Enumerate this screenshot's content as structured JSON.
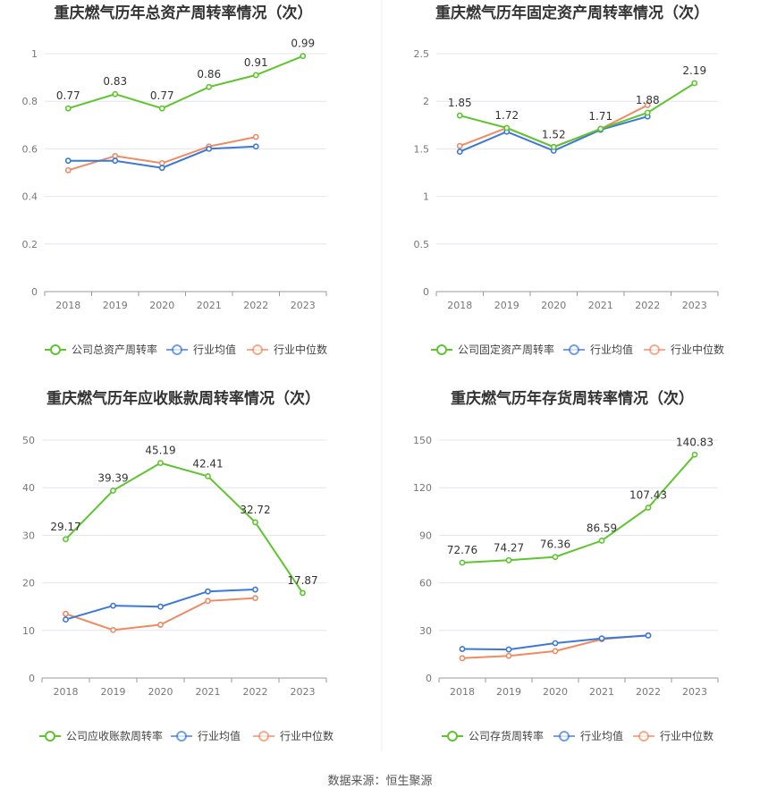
{
  "source": "数据来源：恒生聚源",
  "colors": {
    "company": "#5ec52f",
    "industry_avg": "#3b78d8",
    "industry_median": "#f08a62",
    "grid": "#e4e4ef",
    "axis_text": "#777777",
    "title": "#333333",
    "divider": "#eeeeee"
  },
  "legend_icon": "circle-line-icon",
  "chart_data": [
    {
      "type": "line",
      "title": "重庆燃气历年总资产周转率情况（次）",
      "categories": [
        "2018",
        "2019",
        "2020",
        "2021",
        "2022",
        "2023"
      ],
      "yticks": [
        "0",
        "0.2",
        "0.4",
        "0.6",
        "0.8",
        "1"
      ],
      "ylim": [
        0,
        1.0
      ],
      "grid": true,
      "legend_position": "bottom",
      "series": [
        {
          "name": "公司总资产周转率",
          "role": "company",
          "values": [
            0.77,
            0.83,
            0.77,
            0.86,
            0.91,
            0.99
          ],
          "labels": [
            "0.77",
            "0.83",
            "0.77",
            "0.86",
            "0.91",
            "0.99"
          ]
        },
        {
          "name": "行业均值",
          "role": "industry_avg",
          "values": [
            0.55,
            0.55,
            0.52,
            0.6,
            0.61,
            null
          ]
        },
        {
          "name": "行业中位数",
          "role": "industry_median",
          "values": [
            0.51,
            0.57,
            0.54,
            0.61,
            0.65,
            null
          ]
        }
      ]
    },
    {
      "type": "line",
      "title": "重庆燃气历年固定资产周转率情况（次）",
      "categories": [
        "2018",
        "2019",
        "2020",
        "2021",
        "2022",
        "2023"
      ],
      "yticks": [
        "0",
        "0.5",
        "1",
        "1.5",
        "2",
        "2.5"
      ],
      "ylim": [
        0,
        2.5
      ],
      "grid": true,
      "legend_position": "bottom",
      "series": [
        {
          "name": "公司固定资产周转率",
          "role": "company",
          "values": [
            1.85,
            1.72,
            1.52,
            1.71,
            1.88,
            2.19
          ],
          "labels": [
            "1.85",
            "1.72",
            "1.52",
            "1.71",
            "1.88",
            "2.19"
          ]
        },
        {
          "name": "行业均值",
          "role": "industry_avg",
          "values": [
            1.47,
            1.68,
            1.48,
            1.7,
            1.84,
            null
          ]
        },
        {
          "name": "行业中位数",
          "role": "industry_median",
          "values": [
            1.53,
            1.72,
            1.52,
            1.71,
            1.96,
            null
          ]
        }
      ]
    },
    {
      "type": "line",
      "title": "重庆燃气历年应收账款周转率情况（次）",
      "categories": [
        "2018",
        "2019",
        "2020",
        "2021",
        "2022",
        "2023"
      ],
      "yticks": [
        "0",
        "10",
        "20",
        "30",
        "40",
        "50"
      ],
      "ylim": [
        0,
        50
      ],
      "grid": true,
      "legend_position": "bottom",
      "series": [
        {
          "name": "公司应收账款周转率",
          "role": "company",
          "values": [
            29.17,
            39.39,
            45.19,
            42.41,
            32.72,
            17.87
          ],
          "labels": [
            "29.17",
            "39.39",
            "45.19",
            "42.41",
            "32.72",
            "17.87"
          ]
        },
        {
          "name": "行业均值",
          "role": "industry_avg",
          "values": [
            12.3,
            15.2,
            15.0,
            18.2,
            18.6,
            null
          ]
        },
        {
          "name": "行业中位数",
          "role": "industry_median",
          "values": [
            13.5,
            10.1,
            11.2,
            16.2,
            16.8,
            null
          ]
        }
      ]
    },
    {
      "type": "line",
      "title": "重庆燃气历年存货周转率情况（次）",
      "categories": [
        "2018",
        "2019",
        "2020",
        "2021",
        "2022",
        "2023"
      ],
      "yticks": [
        "0",
        "30",
        "60",
        "90",
        "120",
        "150"
      ],
      "ylim": [
        0,
        150
      ],
      "grid": true,
      "legend_position": "bottom",
      "series": [
        {
          "name": "公司存货周转率",
          "role": "company",
          "values": [
            72.76,
            74.27,
            76.36,
            86.59,
            107.43,
            140.83
          ],
          "labels": [
            "72.76",
            "74.27",
            "76.36",
            "86.59",
            "107.43",
            "140.83"
          ]
        },
        {
          "name": "行业均值",
          "role": "industry_avg",
          "values": [
            18.3,
            18.0,
            22.0,
            25.0,
            26.8,
            null
          ]
        },
        {
          "name": "行业中位数",
          "role": "industry_median",
          "values": [
            12.5,
            14.0,
            17.0,
            24.5,
            27.0,
            null
          ]
        }
      ]
    }
  ]
}
